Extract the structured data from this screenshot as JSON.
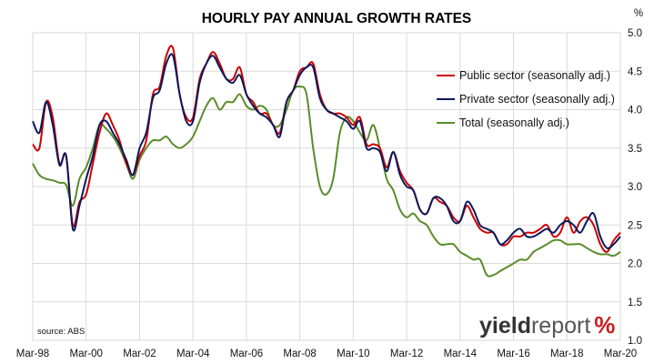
{
  "chart_data": {
    "type": "line",
    "title": "HOURLY PAY ANNUAL GROWTH RATES",
    "y_unit_label": "%",
    "ylim": [
      1.0,
      5.0
    ],
    "y_ticks": [
      "5.0",
      "4.5",
      "4.0",
      "3.5",
      "3.0",
      "2.5",
      "2.0",
      "1.5",
      "1.0"
    ],
    "x_tick_labels": [
      "Mar-98",
      "Mar-00",
      "Mar-02",
      "Mar-04",
      "Mar-06",
      "Mar-08",
      "Mar-10",
      "Mar-12",
      "Mar-14",
      "Mar-16",
      "Mar-18",
      "Mar-20"
    ],
    "x": [
      "Mar-98",
      "Jun-98",
      "Sep-98",
      "Dec-98",
      "Mar-99",
      "Jun-99",
      "Sep-99",
      "Dec-99",
      "Mar-00",
      "Jun-00",
      "Sep-00",
      "Dec-00",
      "Mar-01",
      "Jun-01",
      "Sep-01",
      "Dec-01",
      "Mar-02",
      "Jun-02",
      "Sep-02",
      "Dec-02",
      "Mar-03",
      "Jun-03",
      "Sep-03",
      "Dec-03",
      "Mar-04",
      "Jun-04",
      "Sep-04",
      "Dec-04",
      "Mar-05",
      "Jun-05",
      "Sep-05",
      "Dec-05",
      "Mar-06",
      "Jun-06",
      "Sep-06",
      "Dec-06",
      "Mar-07",
      "Jun-07",
      "Sep-07",
      "Dec-07",
      "Mar-08",
      "Jun-08",
      "Sep-08",
      "Dec-08",
      "Mar-09",
      "Jun-09",
      "Sep-09",
      "Dec-09",
      "Mar-10",
      "Jun-10",
      "Sep-10",
      "Dec-10",
      "Mar-11",
      "Jun-11",
      "Sep-11",
      "Dec-11",
      "Mar-12",
      "Jun-12",
      "Sep-12",
      "Dec-12",
      "Mar-13",
      "Jun-13",
      "Sep-13",
      "Dec-13",
      "Mar-14",
      "Jun-14",
      "Sep-14",
      "Dec-14",
      "Mar-15",
      "Jun-15",
      "Sep-15",
      "Dec-15",
      "Mar-16",
      "Jun-16",
      "Sep-16",
      "Dec-16",
      "Mar-17",
      "Jun-17",
      "Sep-17",
      "Dec-17",
      "Mar-18",
      "Jun-18",
      "Sep-18",
      "Dec-18",
      "Mar-19",
      "Jun-19",
      "Sep-19",
      "Dec-19",
      "Mar-20"
    ],
    "series": [
      {
        "name": "Public sector (seasonally adj.)",
        "color": "#cc0000",
        "values": [
          3.55,
          3.5,
          4.1,
          3.9,
          3.3,
          3.4,
          2.5,
          2.8,
          2.9,
          3.3,
          3.7,
          3.95,
          3.8,
          3.6,
          3.3,
          3.15,
          3.4,
          3.6,
          4.2,
          4.3,
          4.7,
          4.8,
          4.2,
          3.9,
          3.9,
          4.4,
          4.6,
          4.75,
          4.6,
          4.4,
          4.4,
          4.55,
          4.2,
          4.1,
          3.95,
          3.95,
          3.8,
          3.7,
          4.1,
          4.25,
          4.5,
          4.55,
          4.6,
          4.2,
          4.0,
          3.95,
          3.95,
          3.9,
          3.8,
          3.9,
          3.55,
          3.55,
          3.5,
          3.25,
          3.45,
          3.2,
          3.05,
          2.95,
          2.7,
          2.65,
          2.85,
          2.8,
          2.75,
          2.6,
          2.55,
          2.75,
          2.6,
          2.45,
          2.4,
          2.4,
          2.25,
          2.25,
          2.35,
          2.35,
          2.4,
          2.4,
          2.45,
          2.5,
          2.35,
          2.4,
          2.6,
          2.4,
          2.55,
          2.6,
          2.5,
          2.25,
          2.15,
          2.3,
          2.4
        ]
      },
      {
        "name": "Private sector (seasonally adj.)",
        "color": "#0a1a5c",
        "values": [
          3.85,
          3.7,
          4.1,
          3.8,
          3.28,
          3.4,
          2.45,
          2.75,
          3.1,
          3.4,
          3.8,
          3.85,
          3.7,
          3.55,
          3.35,
          3.15,
          3.5,
          3.7,
          4.15,
          4.25,
          4.6,
          4.7,
          4.2,
          3.85,
          3.85,
          4.35,
          4.6,
          4.7,
          4.55,
          4.4,
          4.35,
          4.45,
          4.2,
          4.05,
          3.95,
          3.9,
          3.8,
          3.65,
          4.1,
          4.25,
          4.45,
          4.55,
          4.55,
          4.15,
          4.0,
          3.95,
          3.9,
          3.85,
          3.75,
          3.85,
          3.5,
          3.5,
          3.45,
          3.2,
          3.45,
          3.15,
          3.0,
          2.95,
          2.7,
          2.65,
          2.85,
          2.85,
          2.75,
          2.55,
          2.55,
          2.8,
          2.7,
          2.5,
          2.45,
          2.4,
          2.25,
          2.3,
          2.4,
          2.45,
          2.35,
          2.35,
          2.4,
          2.45,
          2.4,
          2.5,
          2.55,
          2.5,
          2.4,
          2.55,
          2.65,
          2.35,
          2.2,
          2.25,
          2.35
        ]
      },
      {
        "name": "Total (seasonally adj.)",
        "color": "#5a8c2a",
        "values": [
          3.3,
          3.15,
          3.1,
          3.08,
          3.05,
          3.02,
          2.75,
          3.1,
          3.25,
          3.5,
          3.8,
          3.75,
          3.65,
          3.5,
          3.3,
          3.1,
          3.35,
          3.5,
          3.6,
          3.6,
          3.65,
          3.55,
          3.5,
          3.55,
          3.65,
          3.85,
          4.05,
          4.15,
          4.0,
          4.1,
          4.1,
          4.2,
          4.05,
          4.0,
          4.05,
          4.0,
          3.8,
          3.8,
          4.0,
          4.25,
          4.3,
          4.2,
          3.5,
          3.0,
          2.9,
          3.1,
          3.7,
          3.9,
          3.85,
          3.7,
          3.6,
          3.8,
          3.5,
          3.1,
          2.95,
          2.7,
          2.6,
          2.65,
          2.55,
          2.5,
          2.35,
          2.25,
          2.25,
          2.25,
          2.15,
          2.1,
          2.05,
          2.05,
          1.85,
          1.85,
          1.9,
          1.95,
          2.0,
          2.05,
          2.05,
          2.15,
          2.2,
          2.25,
          2.3,
          2.3,
          2.25,
          2.25,
          2.25,
          2.2,
          2.15,
          2.12,
          2.12,
          2.1,
          2.15
        ]
      }
    ],
    "annotations": {
      "source": "source: ABS"
    },
    "legend_position": "top-right",
    "grid": "horizontal and vertical"
  },
  "logo": {
    "part1": "yield",
    "part2": "report",
    "part3": "%"
  }
}
